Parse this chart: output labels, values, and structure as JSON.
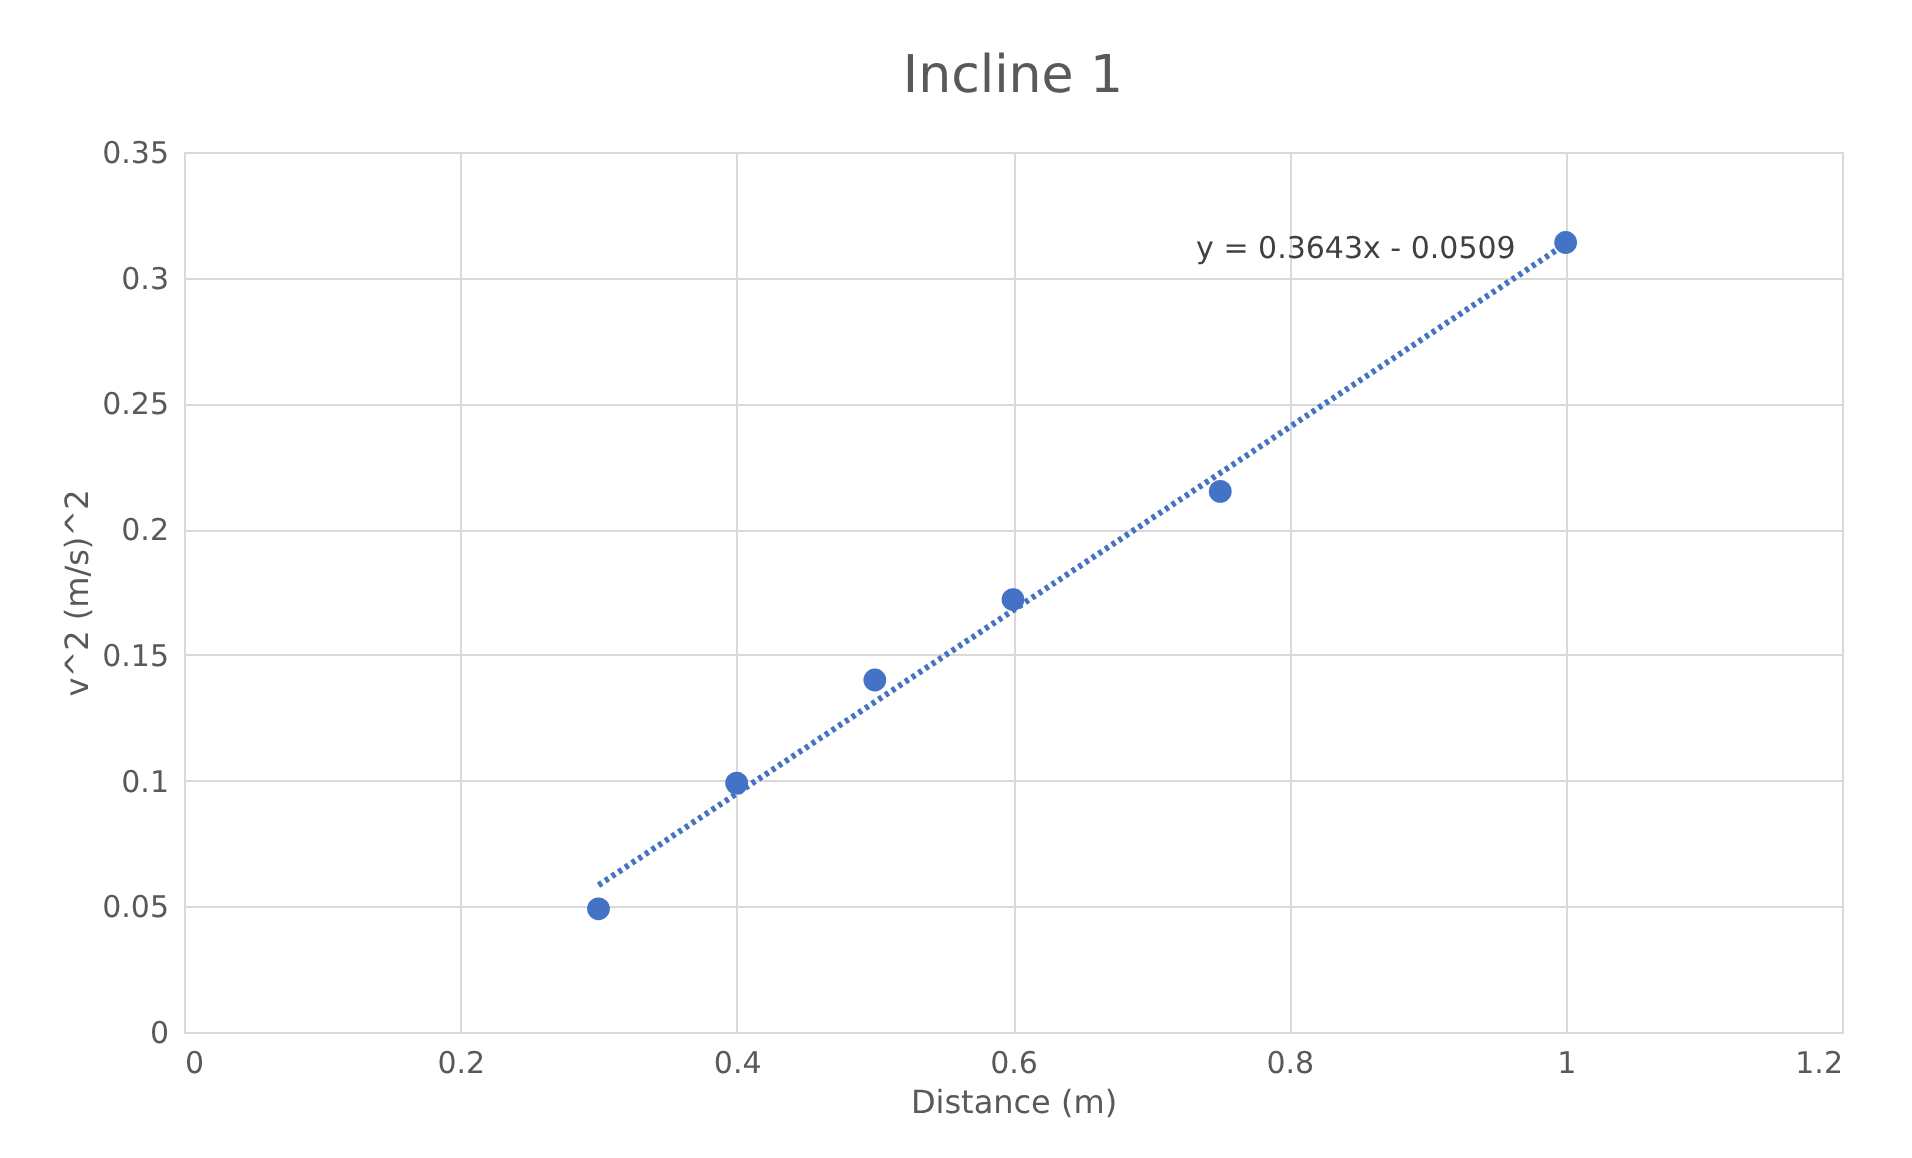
{
  "chart_data": {
    "type": "scatter",
    "title": "Incline 1",
    "xlabel": "Distance (m)",
    "ylabel": "v^2 (m/s)^2",
    "x": [
      0.3,
      0.4,
      0.5,
      0.6,
      0.75,
      1.0
    ],
    "series": [
      {
        "color": "#4472c4",
        "values": [
          0.049,
          0.099,
          0.14,
          0.172,
          0.215,
          0.314
        ],
        "marker": "circle"
      },
      {
        "type": "line",
        "color": "#4472c4",
        "x": [
          0.3,
          1.0
        ],
        "values": [
          0.0584,
          0.3134
        ],
        "line_style": "dotted",
        "marker": "none"
      }
    ],
    "annotations": [
      "y = 0.3643x - 0.0509"
    ],
    "xlim": [
      0,
      1.2
    ],
    "xticks": [
      0,
      0.2,
      0.4,
      0.6,
      0.8,
      1,
      1.2
    ],
    "ylim": [
      0,
      0.35
    ],
    "yticks": [
      0,
      0.05,
      0.1,
      0.15,
      0.2,
      0.25,
      0.3,
      0.35
    ],
    "grid": true
  }
}
